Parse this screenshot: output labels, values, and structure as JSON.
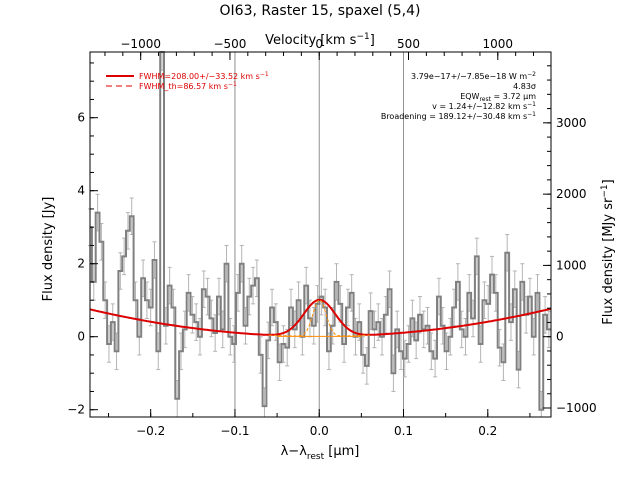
{
  "chart_data": {
    "type": "line",
    "title": "OI63, Raster 15, spaxel (5,4)",
    "xlabel": "λ−λ",
    "xlabel_sub": "rest",
    "xlabel_unit": " [μm]",
    "ylabel": "Flux density [Jy]",
    "top_xlabel": "Velocity [km s",
    "top_xlabel_sup": "−1",
    "top_xlabel_end": "]",
    "right_ylabel": "Flux density [MJy sr",
    "right_ylabel_sup": "−1",
    "right_ylabel_end": "]",
    "xlim": [
      -0.272,
      0.275
    ],
    "ylim": [
      -2.2,
      7.8
    ],
    "x_ticks": [
      -0.2,
      -0.1,
      0.0,
      0.1,
      0.2
    ],
    "x_tick_labels": [
      "−0.2",
      "−0.1",
      "0.0",
      "0.1",
      "0.2"
    ],
    "y_ticks": [
      -2,
      0,
      2,
      4,
      6
    ],
    "y_tick_labels": [
      "−2",
      "0",
      "2",
      "4",
      "6"
    ],
    "top_ticks": [
      -1000,
      -500,
      0,
      500,
      1000
    ],
    "top_tick_labels": [
      "−1000",
      "−500",
      "0",
      "500",
      "1000"
    ],
    "right_ticks": [
      -1000,
      0,
      1000,
      2000,
      3000
    ],
    "right_tick_labels": [
      "−1000",
      "0",
      "1000",
      "2000",
      "3000"
    ],
    "velocity_per_micron": 4720,
    "right_units_per_jy": 512,
    "vertical_lines_x": [
      -0.1,
      0.0,
      0.1
    ],
    "legend": [
      {
        "label": "FWHM=208.00+/−33.52 km s",
        "sup": "−1",
        "style": "solid",
        "color": "#dd0000"
      },
      {
        "label": "FWHM_th=86.57 km s",
        "sup": "−1",
        "style": "dashed",
        "color": "#dd0000"
      }
    ],
    "annotations": [
      {
        "text": "3.79e−17+/−7.85e−18 W m",
        "sup": "−2"
      },
      {
        "text": "4.83σ"
      },
      {
        "text": "EQW",
        "sub": "rest",
        "tail": " = 3.72 μm"
      },
      {
        "text": "v = 1.24+/−12.82 km s",
        "sup": "−1"
      },
      {
        "text": "Broadening = 189.12+/−30.48 km s",
        "sup": "−1"
      }
    ],
    "colors": {
      "spectrum": "#808080",
      "error": "#b4b4b4",
      "fit": "#dd0000",
      "thermal": "#ff8c00",
      "vline": "#909090"
    },
    "spectrum": {
      "x": [
        -0.272,
        -0.2675,
        -0.263,
        -0.2585,
        -0.254,
        -0.2495,
        -0.245,
        -0.2405,
        -0.236,
        -0.2315,
        -0.227,
        -0.2225,
        -0.218,
        -0.2135,
        -0.209,
        -0.2045,
        -0.2,
        -0.1955,
        -0.191,
        -0.1865,
        -0.182,
        -0.1775,
        -0.173,
        -0.1685,
        -0.164,
        -0.1595,
        -0.155,
        -0.1505,
        -0.146,
        -0.1415,
        -0.137,
        -0.1325,
        -0.128,
        -0.1235,
        -0.119,
        -0.1145,
        -0.11,
        -0.1055,
        -0.101,
        -0.0965,
        -0.092,
        -0.0875,
        -0.083,
        -0.0785,
        -0.074,
        -0.0695,
        -0.065,
        -0.0605,
        -0.056,
        -0.0515,
        -0.047,
        -0.0425,
        -0.038,
        -0.0335,
        -0.029,
        -0.0245,
        -0.02,
        -0.0155,
        -0.011,
        -0.0065,
        -0.002,
        0.0025,
        0.007,
        0.0115,
        0.016,
        0.0205,
        0.025,
        0.0295,
        0.034,
        0.0385,
        0.043,
        0.0475,
        0.052,
        0.0565,
        0.061,
        0.0655,
        0.07,
        0.0745,
        0.079,
        0.0835,
        0.088,
        0.0925,
        0.097,
        0.1015,
        0.106,
        0.1105,
        0.115,
        0.1195,
        0.124,
        0.1285,
        0.133,
        0.1375,
        0.142,
        0.1465,
        0.151,
        0.1555,
        0.16,
        0.1645,
        0.169,
        0.1735,
        0.178,
        0.1825,
        0.187,
        0.1915,
        0.196,
        0.2005,
        0.205,
        0.2095,
        0.214,
        0.2185,
        0.223,
        0.2275,
        0.232,
        0.2365,
        0.241,
        0.2455,
        0.25,
        0.2545,
        0.259,
        0.2635,
        0.268,
        0.2725
      ],
      "y": [
        3.0,
        1.5,
        3.4,
        2.6,
        1.0,
        -0.2,
        0.4,
        -0.4,
        1.8,
        2.2,
        2.9,
        3.3,
        1.0,
        0.0,
        1.6,
        1.0,
        0.8,
        2.1,
        -0.4,
        7.8,
        0.3,
        1.4,
        0.8,
        -1.7,
        -0.4,
        0.2,
        1.2,
        0.6,
        0.4,
        0.0,
        1.3,
        1.1,
        0.5,
        0.1,
        1.1,
        0.2,
        2.0,
        0.0,
        -0.2,
        1.2,
        2.0,
        0.3,
        1.1,
        1.4,
        1.6,
        -0.5,
        -1.9,
        -0.1,
        0.8,
        0.4,
        -0.7,
        -0.2,
        -0.3,
        0.8,
        0.2,
        1.0,
        0.0,
        1.4,
        0.5,
        0.3,
        0.9,
        1.1,
        0.8,
        -0.4,
        0.3,
        1.5,
        0.9,
        -0.2,
        0.8,
        1.2,
        0.0,
        0.4,
        -0.5,
        -0.8,
        0.7,
        0.2,
        0.4,
        0.0,
        0.6,
        1.3,
        -1.0,
        0.2,
        -0.4,
        -0.6,
        -0.2,
        0.5,
        -0.1,
        0.6,
        0.2,
        0.3,
        -0.4,
        -0.6,
        1.1,
        0.3,
        -0.4,
        0.0,
        0.8,
        1.5,
        0.2,
        0.0,
        1.2,
        0.5,
        2.2,
        -0.2,
        1.0,
        0.9,
        1.7,
        1.2,
        -0.3,
        -0.7,
        2.3,
        0.4,
        1.3,
        -0.9,
        1.5,
        0.6,
        1.1,
        0.0,
        1.2,
        -2.0,
        0.6,
        0.2
      ],
      "error": 0.5
    }
  }
}
